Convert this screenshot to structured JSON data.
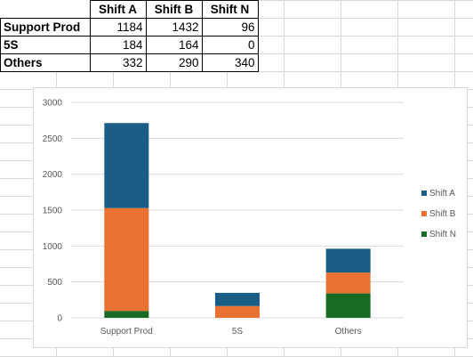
{
  "table": {
    "headers": [
      "",
      "Shift A",
      "Shift B",
      "Shift N"
    ],
    "rows": [
      {
        "label": "Support Prod",
        "values": [
          "1184",
          "1432",
          "96"
        ]
      },
      {
        "label": "5S",
        "values": [
          "184",
          "164",
          "0"
        ]
      },
      {
        "label": "Others",
        "values": [
          "332",
          "290",
          "340"
        ]
      }
    ]
  },
  "chart_data": {
    "type": "bar",
    "stacked": true,
    "categories": [
      "Support Prod",
      "5S",
      "Others"
    ],
    "series": [
      {
        "name": "Shift A",
        "values": [
          1184,
          184,
          332
        ],
        "color": "#1b5e85"
      },
      {
        "name": "Shift B",
        "values": [
          1432,
          164,
          290
        ],
        "color": "#e97132"
      },
      {
        "name": "Shift N",
        "values": [
          96,
          0,
          340
        ],
        "color": "#196b24"
      }
    ],
    "ylim": [
      0,
      3000
    ],
    "yticks": [
      0,
      500,
      1000,
      1500,
      2000,
      2500,
      3000
    ],
    "grid": true,
    "legend": "right",
    "title": "",
    "xlabel": "",
    "ylabel": ""
  }
}
